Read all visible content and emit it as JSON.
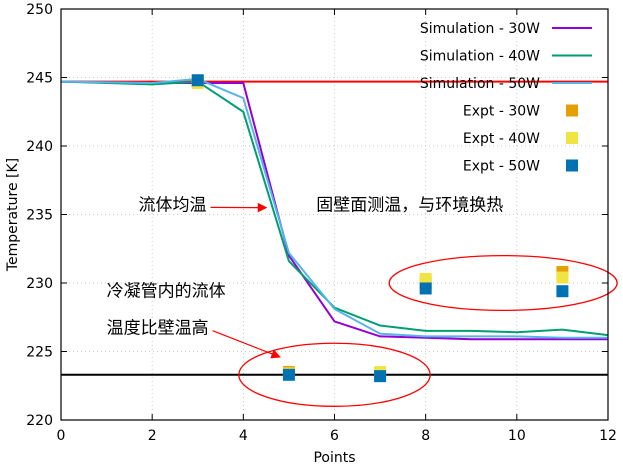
{
  "chart_data": {
    "type": "line",
    "xlabel": "Points",
    "ylabel": "Temperature [K]",
    "xlim": [
      0,
      12
    ],
    "ylim": [
      220,
      250
    ],
    "xticks": [
      0,
      2,
      4,
      6,
      8,
      10,
      12
    ],
    "yticks": [
      220,
      225,
      230,
      235,
      240,
      245,
      250
    ],
    "grid": true,
    "legend_position": "top-right",
    "series": [
      {
        "name": "Simulation - 30W",
        "kind": "line",
        "color": "#9400d3",
        "x": [
          0,
          2,
          3,
          4,
          5,
          6,
          7,
          8,
          9,
          10,
          11,
          12
        ],
        "y": [
          244.7,
          244.6,
          244.6,
          244.6,
          232.0,
          227.2,
          226.1,
          226.0,
          225.9,
          225.9,
          225.9,
          225.9
        ]
      },
      {
        "name": "Simulation - 40W",
        "kind": "line",
        "color": "#009e73",
        "x": [
          0,
          2,
          3,
          4,
          5,
          6,
          7,
          8,
          9,
          10,
          11,
          12
        ],
        "y": [
          244.7,
          244.5,
          244.7,
          242.5,
          231.6,
          228.2,
          226.9,
          226.5,
          226.5,
          226.4,
          226.6,
          226.2
        ]
      },
      {
        "name": "Simulation - 50W",
        "kind": "line",
        "color": "#56b4e9",
        "x": [
          0,
          2,
          3,
          4,
          5,
          6,
          7,
          8,
          9,
          10,
          11,
          12
        ],
        "y": [
          244.7,
          244.6,
          244.9,
          243.5,
          232.2,
          228.1,
          226.3,
          226.1,
          226.1,
          226.1,
          226.0,
          226.0
        ]
      },
      {
        "name": "Expt - 30W",
        "kind": "marker",
        "color": "#e69f00",
        "x": [
          3,
          5,
          7,
          8,
          11
        ],
        "y": [
          244.7,
          223.5,
          223.4,
          230.0,
          230.8
        ]
      },
      {
        "name": "Expt - 40W",
        "kind": "marker",
        "color": "#f0e442",
        "x": [
          3,
          5,
          7,
          8,
          11
        ],
        "y": [
          244.6,
          223.4,
          223.5,
          230.3,
          230.4
        ]
      },
      {
        "name": "Expt - 50W",
        "kind": "marker",
        "color": "#0072b2",
        "x": [
          3,
          5,
          7,
          8,
          11
        ],
        "y": [
          244.8,
          223.3,
          223.2,
          229.6,
          229.4
        ]
      }
    ],
    "reference_lines": [
      {
        "y": 244.7,
        "color": "#ff0000"
      },
      {
        "y": 223.3,
        "color": "#000000"
      }
    ],
    "annotations": [
      {
        "text": "流体均温",
        "x": 1.7,
        "y": 235.3,
        "arrow_to": [
          4.5,
          235.5
        ]
      },
      {
        "text": "固壁面测温，与环境换热",
        "x": 5.6,
        "y": 235.3
      },
      {
        "text": "冷凝管内的流体",
        "x": 1.0,
        "y": 229.0
      },
      {
        "text": "温度比壁温高",
        "x": 1.0,
        "y": 226.3,
        "arrow_to": [
          4.8,
          224.6
        ]
      }
    ],
    "ellipses": [
      {
        "cx": 6.0,
        "cy": 223.3,
        "rx": 2.1,
        "ry": 2.3,
        "color": "#ff0000"
      },
      {
        "cx": 9.7,
        "cy": 230.0,
        "rx": 2.5,
        "ry": 2.0,
        "color": "#ff0000"
      }
    ]
  }
}
